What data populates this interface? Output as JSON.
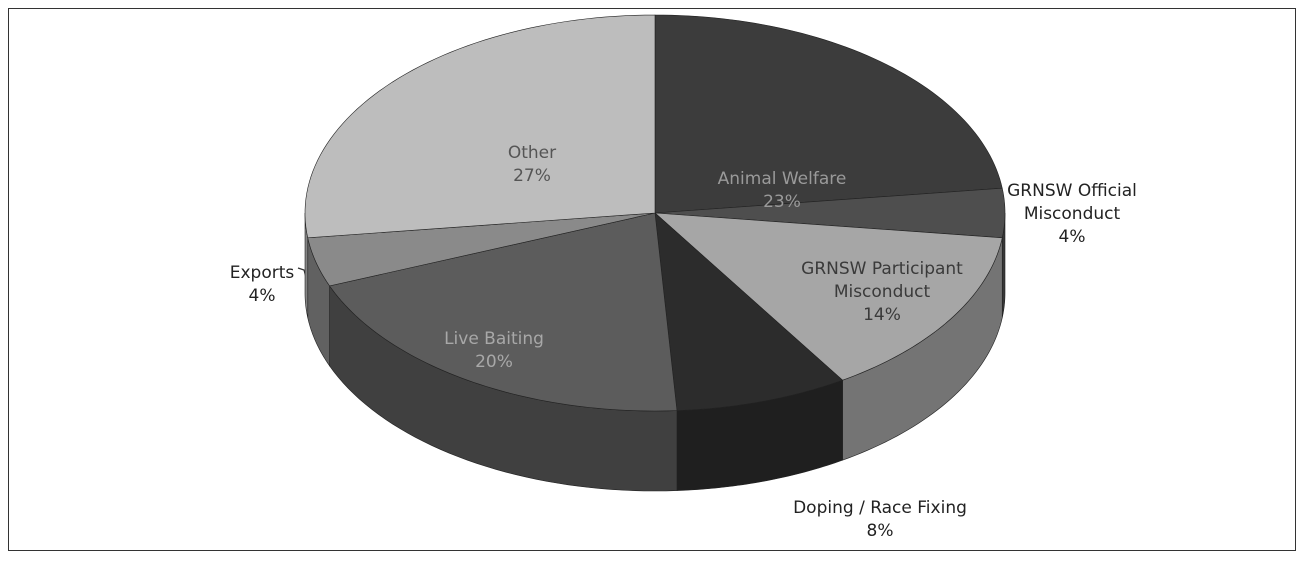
{
  "chart_data": {
    "type": "pie3d",
    "categories": [
      "Animal Welfare",
      "GRNSW Official Misconduct",
      "GRNSW Participant Misconduct",
      "Doping / Race Fixing",
      "Live Baiting",
      "Exports",
      "Other"
    ],
    "values": [
      23,
      4,
      14,
      8,
      20,
      4,
      27
    ],
    "value_labels": [
      "23%",
      "4%",
      "14%",
      "8%",
      "20%",
      "4%",
      "27%"
    ],
    "colors": [
      "#3c3c3c",
      "#4e4e4e",
      "#a6a6a6",
      "#2c2c2c",
      "#5c5c5c",
      "#8a8a8a",
      "#bdbdbd"
    ]
  }
}
